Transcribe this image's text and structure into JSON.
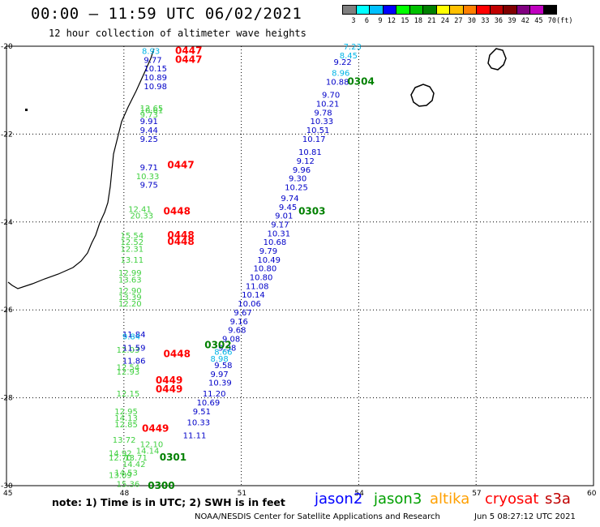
{
  "header": {
    "title": "00:00 – 11:59 UTC 06/02/2021",
    "subtitle": "12 hour collection of altimeter wave heights"
  },
  "colorbar": {
    "unit": "(ft)",
    "colors": [
      "#7f7f7f",
      "#00ffff",
      "#00c0ff",
      "#0000ff",
      "#00ff00",
      "#00c000",
      "#008000",
      "#ffff00",
      "#ffc000",
      "#ff8000",
      "#ff0000",
      "#c00000",
      "#800000",
      "#800080",
      "#c000c0",
      "#000000"
    ],
    "labels": [
      "3",
      "6",
      "9",
      "12",
      "15",
      "18",
      "21",
      "24",
      "27",
      "30",
      "33",
      "36",
      "39",
      "42",
      "45",
      "70"
    ]
  },
  "map": {
    "lon_range": [
      45,
      60
    ],
    "lat_range": [
      -30,
      -20
    ],
    "lon_ticks": [
      "45",
      "48",
      "51",
      "54",
      "57",
      "60"
    ],
    "lat_ticks": [
      "-20",
      "-22",
      "-24",
      "-26",
      "-28",
      "-30"
    ]
  },
  "observations": {
    "jason2": [
      [
        "9.77",
        48.8,
        -20.3
      ],
      [
        "10.15",
        48.8,
        -20.5
      ],
      [
        "10.89",
        48.8,
        -20.7
      ],
      [
        "10.98",
        48.8,
        -20.9
      ],
      [
        "9.91",
        48.7,
        -21.7
      ],
      [
        "9.44",
        48.7,
        -21.9
      ],
      [
        "9.25",
        48.7,
        -22.1
      ],
      [
        "9.71",
        48.7,
        -22.75
      ],
      [
        "9.75",
        48.7,
        -23.15
      ],
      [
        "9.22",
        53.65,
        -20.35
      ],
      [
        "10.88",
        53.45,
        -20.8
      ],
      [
        "9.70",
        53.35,
        -21.1
      ],
      [
        "10.21",
        53.2,
        -21.3
      ],
      [
        "9.78",
        53.15,
        -21.5
      ],
      [
        "10.33",
        53.05,
        -21.7
      ],
      [
        "10.51",
        52.95,
        -21.9
      ],
      [
        "10.17",
        52.85,
        -22.1
      ],
      [
        "10.81",
        52.75,
        -22.4
      ],
      [
        "9.12",
        52.7,
        -22.6
      ],
      [
        "9.96",
        52.6,
        -22.8
      ],
      [
        "9.30",
        52.5,
        -23.0
      ],
      [
        "10.25",
        52.4,
        -23.2
      ],
      [
        "9.74",
        52.3,
        -23.45
      ],
      [
        "9.45",
        52.25,
        -23.65
      ],
      [
        "9.01",
        52.15,
        -23.85
      ],
      [
        "9.17",
        52.05,
        -24.05
      ],
      [
        "10.31",
        51.95,
        -24.25
      ],
      [
        "10.68",
        51.85,
        -24.45
      ],
      [
        "9.79",
        51.75,
        -24.65
      ],
      [
        "10.49",
        51.7,
        -24.85
      ],
      [
        "10.80",
        51.6,
        -25.05
      ],
      [
        "10.80",
        51.5,
        -25.25
      ],
      [
        "11.08",
        51.4,
        -25.45
      ],
      [
        "10.14",
        51.3,
        -25.65
      ],
      [
        "10.06",
        51.2,
        -25.85
      ],
      [
        "9.67",
        51.1,
        -26.05
      ],
      [
        "9.16",
        51.0,
        -26.25
      ],
      [
        "9.68",
        50.95,
        -26.45
      ],
      [
        "9.08",
        50.8,
        -26.65
      ],
      [
        "9.38",
        50.7,
        -26.85
      ],
      [
        "9.58",
        50.6,
        -27.25
      ],
      [
        "9.97",
        50.5,
        -27.45
      ],
      [
        "10.39",
        50.45,
        -27.65
      ],
      [
        "11.20",
        50.3,
        -27.9
      ],
      [
        "10.69",
        50.15,
        -28.1
      ],
      [
        "9.51",
        50.05,
        -28.3
      ],
      [
        "10.33",
        49.9,
        -28.55
      ],
      [
        "11.11",
        49.8,
        -28.85
      ],
      [
        "11.84",
        48.25,
        -26.55
      ],
      [
        "11.59",
        48.25,
        -26.85
      ],
      [
        "11.86",
        48.25,
        -27.15
      ]
    ],
    "jason2_light": [
      [
        "7.23",
        53.9,
        -20.0
      ],
      [
        "8.45",
        53.8,
        -20.2
      ],
      [
        "8.96",
        53.6,
        -20.6
      ],
      [
        "8.93",
        48.75,
        -20.1
      ],
      [
        "9.84",
        48.25,
        -26.6
      ],
      [
        "8.66",
        50.6,
        -26.95
      ],
      [
        "8.98",
        50.5,
        -27.1
      ]
    ],
    "jason3": [
      [
        "12.65",
        48.7,
        -21.4
      ],
      [
        "10.61",
        48.7,
        -21.45
      ],
      [
        "9.73",
        48.7,
        -21.55
      ],
      [
        "10.33",
        48.6,
        -22.95
      ],
      [
        "12.41",
        48.4,
        -23.7
      ],
      [
        "20.33",
        48.45,
        -23.85
      ],
      [
        "15.54",
        48.2,
        -24.3
      ],
      [
        "12.52",
        48.2,
        -24.45
      ],
      [
        "12.31",
        48.2,
        -24.6
      ],
      [
        "13.11",
        48.2,
        -24.85
      ],
      [
        "12.99",
        48.15,
        -25.15
      ],
      [
        "13.63",
        48.15,
        -25.3
      ],
      [
        "12.90",
        48.15,
        -25.55
      ],
      [
        "13.39",
        48.15,
        -25.7
      ],
      [
        "12.20",
        48.15,
        -25.85
      ],
      [
        "12.03",
        48.1,
        -26.9
      ],
      [
        "12.54",
        48.1,
        -27.3
      ],
      [
        "12.93",
        48.1,
        -27.4
      ],
      [
        "12.15",
        48.1,
        -27.9
      ],
      [
        "12.95",
        48.05,
        -28.3
      ],
      [
        "14.13",
        48.05,
        -28.45
      ],
      [
        "12.85",
        48.05,
        -28.6
      ],
      [
        "13.72",
        48.0,
        -28.95
      ],
      [
        "12.10",
        48.7,
        -29.05
      ],
      [
        "14.14",
        48.6,
        -29.2
      ],
      [
        "14.92",
        47.9,
        -29.25
      ],
      [
        "12.70",
        47.9,
        -29.35
      ],
      [
        "13.71",
        48.3,
        -29.35
      ],
      [
        "14.42",
        48.25,
        -29.5
      ],
      [
        "13.09",
        47.9,
        -29.75
      ],
      [
        "14.53",
        48.05,
        -29.7
      ],
      [
        "15.36",
        48.1,
        -29.95
      ]
    ],
    "jason3_light": [],
    "cryosat": [],
    "s3a_times": [
      [
        "0447",
        49.6,
        -20.1
      ],
      [
        "0447",
        49.6,
        -20.3
      ],
      [
        "0447",
        49.4,
        -22.7
      ],
      [
        "0448",
        49.3,
        -23.75
      ],
      [
        "0448",
        49.4,
        -24.3
      ],
      [
        "0448",
        49.4,
        -24.45
      ],
      [
        "0448",
        49.3,
        -27.0
      ],
      [
        "0449",
        49.1,
        -27.6
      ],
      [
        "0449",
        49.1,
        -27.8
      ],
      [
        "0449",
        48.75,
        -28.7
      ]
    ],
    "jason2_times": [],
    "jason3_times": [
      [
        "0304",
        54.0,
        -20.8
      ],
      [
        "0303",
        52.75,
        -23.75
      ],
      [
        "0302",
        50.35,
        -26.8
      ],
      [
        "0301",
        49.2,
        -29.35
      ],
      [
        "0300",
        48.9,
        -30.0
      ]
    ]
  },
  "footer": {
    "note": "note: 1) Time is in UTC; 2) SWH is in feet",
    "legend": [
      {
        "name": "jason2",
        "color": "#0000ff",
        "x": 388
      },
      {
        "name": "jason3",
        "color": "#00a000",
        "x": 461
      },
      {
        "name": "altika",
        "color": "#ffa000",
        "x": 530
      },
      {
        "name": "cryosat",
        "color": "#ff0000",
        "x": 598
      },
      {
        "name": "s3a",
        "color": "#c00000",
        "x": 672
      }
    ],
    "credit": "NOAA/NESDIS Center for Satellite Applications and Research",
    "timestamp": "Jun  5 08:27:12 UTC 2021"
  },
  "colors": {
    "jason2": "#0000c8",
    "jason2_light": "#00b4e6",
    "jason3": "#40d040",
    "s3a": "#ff0000",
    "pass_label": "#008000"
  }
}
